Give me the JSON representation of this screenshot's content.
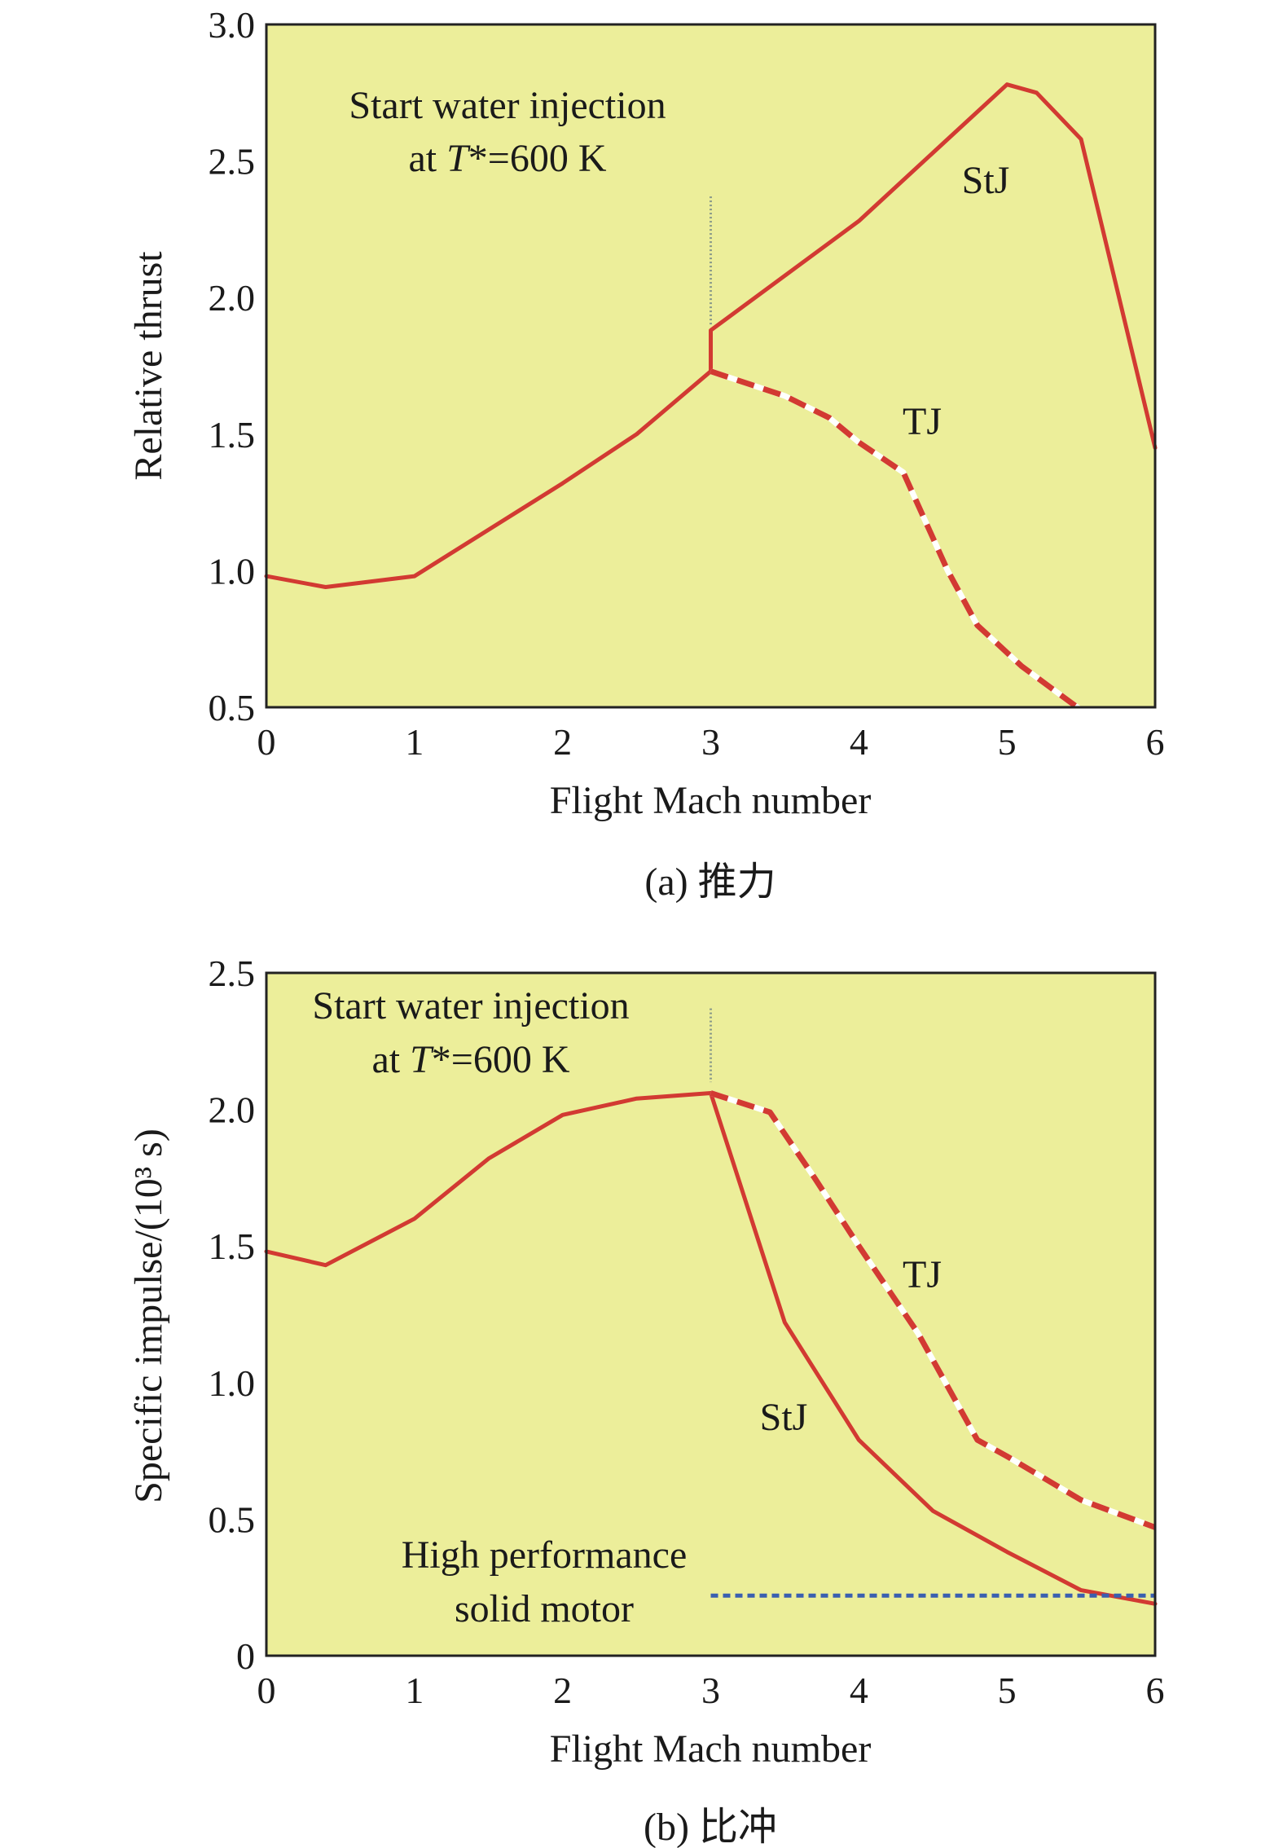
{
  "chart_data": [
    {
      "id": "thrust",
      "type": "line",
      "caption": "(a) 推力",
      "xlabel": "Flight Mach number",
      "ylabel": "Relative thrust",
      "xlim": [
        0,
        6
      ],
      "ylim": [
        0.5,
        3.0
      ],
      "xticks": [
        "0",
        "1",
        "2",
        "3",
        "4",
        "5",
        "6"
      ],
      "yticks": [
        "0.5",
        "1.0",
        "1.5",
        "2.0",
        "2.5",
        "3.0"
      ],
      "annotation": {
        "line1": "Start water injection",
        "line2_prefix": "at ",
        "line2_var": "T",
        "line2_suffix": "*=600 K"
      },
      "marker_x": 3,
      "series": [
        {
          "name": "StJ",
          "style": "solid",
          "color": "#d23a32",
          "x": [
            0,
            0.4,
            1,
            2,
            2.5,
            3,
            3,
            4,
            5,
            5.2,
            5.5,
            6
          ],
          "y": [
            0.98,
            0.94,
            0.98,
            1.32,
            1.5,
            1.73,
            1.88,
            2.28,
            2.78,
            2.75,
            2.58,
            1.45
          ]
        },
        {
          "name": "TJ",
          "style": "dashed",
          "color": "#d23a32",
          "x": [
            3,
            3.5,
            3.8,
            4,
            4.3,
            4.6,
            4.8,
            5.1,
            5.5
          ],
          "y": [
            1.73,
            1.64,
            1.56,
            1.47,
            1.36,
            1.0,
            0.8,
            0.65,
            0.49
          ]
        }
      ]
    },
    {
      "id": "isp",
      "type": "line",
      "caption": "(b) 比冲",
      "xlabel": "Flight Mach number",
      "ylabel": "Specific impulse/(10³ s)",
      "xlim": [
        0,
        6
      ],
      "ylim": [
        0,
        2.5
      ],
      "xticks": [
        "0",
        "1",
        "2",
        "3",
        "4",
        "5",
        "6"
      ],
      "yticks": [
        "0",
        "0.5",
        "1.0",
        "1.5",
        "2.0",
        "2.5"
      ],
      "annotation": {
        "line1": "Start water injection",
        "line2_prefix": "at ",
        "line2_var": "T",
        "line2_suffix": "*=600 K"
      },
      "annotation2": {
        "line1": "High performance",
        "line2": "solid motor"
      },
      "marker_x": 3,
      "series": [
        {
          "name": "StJ",
          "style": "solid",
          "color": "#d23a32",
          "x": [
            0,
            0.4,
            1,
            1.5,
            2,
            2.5,
            3,
            3.5,
            4,
            4.5,
            5,
            5.5,
            6
          ],
          "y": [
            1.48,
            1.43,
            1.6,
            1.82,
            1.98,
            2.04,
            2.06,
            1.22,
            0.79,
            0.53,
            0.38,
            0.24,
            0.19
          ]
        },
        {
          "name": "TJ",
          "style": "dashed",
          "color": "#d23a32",
          "x": [
            3,
            3.4,
            3.7,
            4,
            4.4,
            4.8,
            5,
            5.5,
            6
          ],
          "y": [
            2.06,
            1.99,
            1.75,
            1.5,
            1.18,
            0.79,
            0.73,
            0.57,
            0.47
          ]
        },
        {
          "name": "High performance solid motor",
          "style": "dotted",
          "color": "#3a5fb0",
          "x": [
            3,
            6
          ],
          "y": [
            0.22,
            0.22
          ]
        }
      ]
    }
  ],
  "colors": {
    "plot_bg": "#ecee9a",
    "curve": "#d23a32",
    "solid_motor": "#3a5fb0",
    "axis": "#222222"
  }
}
